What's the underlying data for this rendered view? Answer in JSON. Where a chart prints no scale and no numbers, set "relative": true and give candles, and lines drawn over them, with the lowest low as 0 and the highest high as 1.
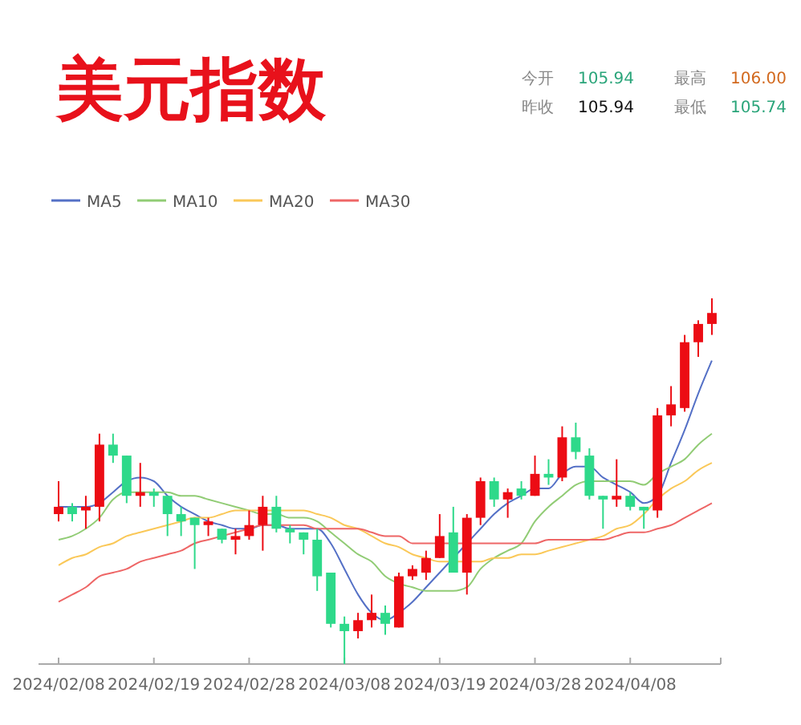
{
  "chart_data": {
    "type": "candlestick",
    "title": "美元指数",
    "annotations": [
      "今开",
      "105.94",
      "最高",
      "106.00",
      "昨收",
      "105.94",
      "最低",
      "105.74"
    ],
    "relative": true,
    "legend": "top left",
    "marker": "none",
    "categories": [
      "2024/02/08",
      null,
      null,
      null,
      null,
      null,
      null,
      "2024/02/19",
      null,
      null,
      null,
      null,
      null,
      null,
      "2024/02/28",
      null,
      null,
      null,
      null,
      null,
      null,
      "2024/03/08",
      null,
      null,
      null,
      null,
      null,
      null,
      "2024/03/19",
      null,
      null,
      null,
      null,
      null,
      null,
      "2024/03/28",
      null,
      null,
      null,
      null,
      null,
      null,
      "2024/04/08",
      null,
      null,
      null,
      null,
      null,
      null
    ],
    "ohlc": [
      [
        0.41,
        0.5,
        0.39,
        0.43
      ],
      [
        0.43,
        0.44,
        0.39,
        0.41
      ],
      [
        0.42,
        0.46,
        0.37,
        0.43
      ],
      [
        0.43,
        0.63,
        0.39,
        0.6
      ],
      [
        0.6,
        0.63,
        0.55,
        0.57
      ],
      [
        0.57,
        0.57,
        0.44,
        0.46
      ],
      [
        0.46,
        0.55,
        0.43,
        0.47
      ],
      [
        0.47,
        0.48,
        0.43,
        0.46
      ],
      [
        0.46,
        0.46,
        0.35,
        0.41
      ],
      [
        0.41,
        0.43,
        0.35,
        0.39
      ],
      [
        0.4,
        0.4,
        0.26,
        0.38
      ],
      [
        0.38,
        0.4,
        0.35,
        0.39
      ],
      [
        0.37,
        0.37,
        0.33,
        0.34
      ],
      [
        0.34,
        0.37,
        0.3,
        0.35
      ],
      [
        0.35,
        0.42,
        0.34,
        0.38
      ],
      [
        0.38,
        0.46,
        0.31,
        0.43
      ],
      [
        0.43,
        0.46,
        0.36,
        0.37
      ],
      [
        0.37,
        0.38,
        0.33,
        0.36
      ],
      [
        0.36,
        0.36,
        0.3,
        0.34
      ],
      [
        0.34,
        0.37,
        0.2,
        0.24
      ],
      [
        0.25,
        0.25,
        0.1,
        0.11
      ],
      [
        0.11,
        0.13,
        0,
        0.09
      ],
      [
        0.09,
        0.14,
        0.07,
        0.12
      ],
      [
        0.12,
        0.19,
        0.1,
        0.14
      ],
      [
        0.14,
        0.16,
        0.08,
        0.11
      ],
      [
        0.1,
        0.25,
        0.1,
        0.24
      ],
      [
        0.24,
        0.27,
        0.23,
        0.26
      ],
      [
        0.25,
        0.31,
        0.23,
        0.29
      ],
      [
        0.29,
        0.41,
        0.29,
        0.35
      ],
      [
        0.36,
        0.43,
        0.25,
        0.25
      ],
      [
        0.25,
        0.41,
        0.19,
        0.4
      ],
      [
        0.4,
        0.51,
        0.38,
        0.5
      ],
      [
        0.5,
        0.51,
        0.43,
        0.45
      ],
      [
        0.45,
        0.48,
        0.4,
        0.47
      ],
      [
        0.48,
        0.5,
        0.45,
        0.46
      ],
      [
        0.46,
        0.57,
        0.46,
        0.52
      ],
      [
        0.52,
        0.56,
        0.49,
        0.51
      ],
      [
        0.51,
        0.65,
        0.5,
        0.62
      ],
      [
        0.62,
        0.66,
        0.56,
        0.58
      ],
      [
        0.57,
        0.59,
        0.45,
        0.46
      ],
      [
        0.46,
        0.46,
        0.37,
        0.45
      ],
      [
        0.45,
        0.56,
        0.43,
        0.46
      ],
      [
        0.46,
        0.47,
        0.42,
        0.43
      ],
      [
        0.43,
        0.43,
        0.37,
        0.42
      ],
      [
        0.42,
        0.7,
        0.4,
        0.68
      ],
      [
        0.68,
        0.76,
        0.65,
        0.71
      ],
      [
        0.7,
        0.9,
        0.69,
        0.88
      ],
      [
        0.88,
        0.94,
        0.84,
        0.93
      ],
      [
        0.93,
        1.0,
        0.9,
        0.96
      ]
    ],
    "colors": [
      "#ec0c14",
      "#2ed98a",
      "#ec0c14",
      "#ec0c14",
      "#2ed98a",
      "#2ed98a",
      "#ec0c14",
      "#2ed98a",
      "#2ed98a",
      "#2ed98a",
      "#2ed98a",
      "#ec0c14",
      "#2ed98a",
      "#ec0c14",
      "#ec0c14",
      "#ec0c14",
      "#2ed98a",
      "#2ed98a",
      "#2ed98a",
      "#2ed98a",
      "#2ed98a",
      "#2ed98a",
      "#ec0c14",
      "#ec0c14",
      "#2ed98a",
      "#ec0c14",
      "#ec0c14",
      "#ec0c14",
      "#ec0c14",
      "#2ed98a",
      "#ec0c14",
      "#ec0c14",
      "#2ed98a",
      "#ec0c14",
      "#2ed98a",
      "#ec0c14",
      "#2ed98a",
      "#ec0c14",
      "#2ed98a",
      "#2ed98a",
      "#2ed98a",
      "#ec0c14",
      "#2ed98a",
      "#2ed98a",
      "#ec0c14",
      "#ec0c14",
      "#ec0c14",
      "#ec0c14",
      "#ec0c14"
    ],
    "series": [
      {
        "name": "MA5",
        "type": "line",
        "color": "#5470c6",
        "values": [
          0.43,
          0.43,
          0.43,
          0.44,
          0.47,
          0.5,
          0.51,
          0.5,
          0.46,
          0.43,
          0.41,
          0.39,
          0.38,
          0.37,
          0.37,
          0.38,
          0.38,
          0.37,
          0.37,
          0.37,
          0.33,
          0.26,
          0.19,
          0.14,
          0.12,
          0.14,
          0.17,
          0.21,
          0.25,
          0.29,
          0.33,
          0.37,
          0.41,
          0.44,
          0.46,
          0.48,
          0.48,
          0.52,
          0.54,
          0.54,
          0.51,
          0.49,
          0.47,
          0.44,
          0.46,
          0.55,
          0.64,
          0.74,
          0.83
        ]
      },
      {
        "name": "MA10",
        "type": "line",
        "color": "#91cc75",
        "values": [
          0.34,
          0.35,
          0.37,
          0.4,
          0.45,
          0.47,
          0.47,
          0.47,
          0.47,
          0.46,
          0.46,
          0.45,
          0.44,
          0.43,
          0.42,
          0.41,
          0.41,
          0.4,
          0.4,
          0.39,
          0.36,
          0.33,
          0.3,
          0.28,
          0.24,
          0.22,
          0.21,
          0.2,
          0.2,
          0.2,
          0.21,
          0.26,
          0.29,
          0.31,
          0.33,
          0.39,
          0.43,
          0.46,
          0.49,
          0.5,
          0.5,
          0.5,
          0.5,
          0.49,
          0.52,
          0.54,
          0.56,
          0.6,
          0.63
        ]
      },
      {
        "name": "MA20",
        "type": "line",
        "color": "#fac858",
        "values": [
          0.27,
          0.29,
          0.3,
          0.32,
          0.33,
          0.35,
          0.36,
          0.37,
          0.38,
          0.39,
          0.4,
          0.4,
          0.41,
          0.42,
          0.42,
          0.42,
          0.42,
          0.42,
          0.42,
          0.41,
          0.4,
          0.38,
          0.37,
          0.35,
          0.33,
          0.32,
          0.3,
          0.29,
          0.28,
          0.28,
          0.28,
          0.28,
          0.29,
          0.29,
          0.3,
          0.3,
          0.31,
          0.32,
          0.33,
          0.34,
          0.35,
          0.37,
          0.38,
          0.41,
          0.45,
          0.48,
          0.5,
          0.53,
          0.55
        ]
      },
      {
        "name": "MA30",
        "type": "line",
        "color": "#ee6666",
        "values": [
          0.17,
          0.19,
          0.21,
          0.24,
          0.25,
          0.26,
          0.28,
          0.29,
          0.3,
          0.31,
          0.33,
          0.34,
          0.35,
          0.36,
          0.37,
          0.38,
          0.38,
          0.38,
          0.38,
          0.37,
          0.37,
          0.37,
          0.37,
          0.36,
          0.35,
          0.35,
          0.33,
          0.33,
          0.33,
          0.33,
          0.33,
          0.33,
          0.33,
          0.33,
          0.33,
          0.33,
          0.34,
          0.34,
          0.34,
          0.34,
          0.34,
          0.35,
          0.36,
          0.36,
          0.37,
          0.38,
          0.4,
          0.42,
          0.44
        ]
      }
    ]
  }
}
